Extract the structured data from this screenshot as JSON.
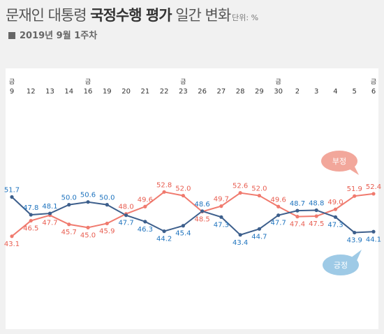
{
  "header": {
    "title_part1": "문재인 대통령 ",
    "title_bold": "국정수행 평가",
    "title_part2": " 일간 변화",
    "unit": "단위: %",
    "subtitle": "2019년 9월 1주차"
  },
  "colors": {
    "positive": "#3d5f8c",
    "positive_label": "#1e73be",
    "negative": "#f07a6e",
    "negative_label": "#e85d50",
    "positive_bubble": "#9ecae6",
    "negative_bubble": "#f2a79b"
  },
  "chart_data": {
    "type": "line",
    "title": "문재인 대통령 국정수행 평가 일간 변화",
    "unit": "단위: %",
    "categories": [
      "9",
      "12",
      "13",
      "14",
      "16",
      "19",
      "20",
      "21",
      "22",
      "23",
      "26",
      "27",
      "28",
      "29",
      "30",
      "2",
      "3",
      "4",
      "5",
      "6"
    ],
    "day_markers": [
      "금",
      "",
      "",
      "",
      "금",
      "",
      "",
      "",
      "",
      "금",
      "",
      "",
      "",
      "",
      "금",
      "",
      "",
      "",
      "",
      "금"
    ],
    "ylim": [
      40,
      56
    ],
    "series": [
      {
        "name": "긍정",
        "values": [
          51.7,
          47.8,
          48.1,
          50.0,
          50.6,
          50.0,
          47.7,
          46.3,
          44.2,
          45.4,
          48.6,
          47.3,
          43.4,
          44.7,
          47.7,
          48.7,
          48.8,
          47.3,
          43.9,
          44.1
        ]
      },
      {
        "name": "부정",
        "values": [
          43.1,
          46.5,
          47.7,
          45.7,
          45.0,
          45.9,
          48.0,
          49.6,
          52.8,
          52.0,
          48.5,
          49.7,
          52.6,
          52.0,
          49.6,
          47.4,
          47.5,
          49.0,
          51.9,
          52.4
        ]
      }
    ],
    "legend": {
      "positive": "긍정",
      "negative": "부정"
    },
    "grid": false
  }
}
